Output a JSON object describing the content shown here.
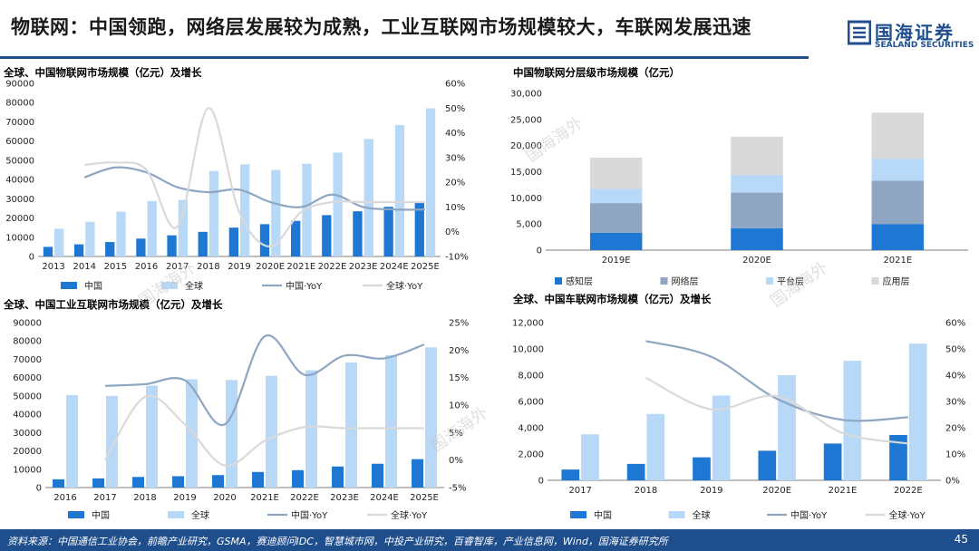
{
  "header": {
    "title": "物联网：中国领跑，网络层发展较为成熟，工业互联网市场规模较大，车联网发展迅速",
    "logo_cn": "国海证券",
    "logo_en": "SEALAND SECURITIES"
  },
  "watermark": "国海海外",
  "footer": {
    "source": "资料来源：中国通信工业协会，前瞻产业研究，GSMA，赛迪顾问IDC，智慧城市网，中投产业研究，百睿智库，产业信息网，Wind，国海证券研究所",
    "page": "45"
  },
  "colors": {
    "china": "#1f77d4",
    "global": "#b7d8f7",
    "china_yoy": "#8ea6c2",
    "global_yoy": "#d9d9d9",
    "perception": "#1f77d4",
    "network": "#8ea6c2",
    "platform": "#b7d8f7",
    "application": "#d9d9d9",
    "brand": "#1f4e8c"
  },
  "chart_data": [
    {
      "id": "iot",
      "type": "bar",
      "title": "全球、中国物联网市场规模（亿元）及增长",
      "categories": [
        "2013",
        "2014",
        "2015",
        "2016",
        "2017",
        "2018",
        "2019",
        "2020E",
        "2021E",
        "2022E",
        "2023E",
        "2024E",
        "2025E"
      ],
      "series": [
        {
          "name": "中国",
          "kind": "bar",
          "values": [
            5000,
            6300,
            7500,
            9300,
            11000,
            12800,
            15000,
            16800,
            18500,
            21500,
            23500,
            25800,
            28000
          ]
        },
        {
          "name": "全球",
          "kind": "bar",
          "values": [
            14400,
            18000,
            23300,
            28800,
            29400,
            44400,
            47900,
            45000,
            48200,
            54000,
            61100,
            68400,
            77000
          ]
        },
        {
          "name": "中国·YoY",
          "kind": "line",
          "axis": "right",
          "values": [
            null,
            22,
            26,
            24,
            18,
            16,
            17,
            12,
            10,
            15,
            10,
            9,
            9
          ]
        },
        {
          "name": "全球·YoY",
          "kind": "line",
          "axis": "right",
          "values": [
            null,
            27,
            28,
            25,
            2,
            50,
            8,
            -6,
            8,
            12,
            12,
            12,
            12
          ]
        }
      ],
      "ylim": [
        0,
        90000
      ],
      "y_ticks": [
        "0",
        "10000",
        "20000",
        "30000",
        "40000",
        "50000",
        "60000",
        "70000",
        "80000",
        "90000"
      ],
      "y2lim": [
        -10,
        60
      ],
      "y2_ticks": [
        "-10%",
        "0%",
        "10%",
        "20%",
        "30%",
        "40%",
        "50%",
        "60%"
      ],
      "legend": [
        "中国",
        "全球",
        "中国·YoY",
        "全球·YoY"
      ]
    },
    {
      "id": "layers",
      "type": "bar",
      "stacked": true,
      "title": "中国物联网分层级市场规模（亿元）",
      "categories": [
        "2019E",
        "2020E",
        "2021E"
      ],
      "series": [
        {
          "name": "感知层",
          "values": [
            3300,
            4200,
            5000
          ]
        },
        {
          "name": "网络层",
          "values": [
            5700,
            6800,
            8300
          ]
        },
        {
          "name": "平台层",
          "values": [
            2700,
            3400,
            4200
          ]
        },
        {
          "name": "应用层",
          "values": [
            6000,
            7300,
            8800
          ]
        }
      ],
      "ylim": [
        0,
        30000
      ],
      "y_ticks": [
        "0",
        "5,000",
        "10,000",
        "15,000",
        "20,000",
        "25,000",
        "30,000"
      ],
      "legend": [
        "感知层",
        "网络层",
        "平台层",
        "应用层"
      ]
    },
    {
      "id": "iiot",
      "type": "bar",
      "title": "全球、中国工业互联网市场规模（亿元）及增长",
      "categories": [
        "2016",
        "2017",
        "2018",
        "2019",
        "2020",
        "2021E",
        "2022E",
        "2023E",
        "2024E",
        "2025E"
      ],
      "series": [
        {
          "name": "中国",
          "kind": "bar",
          "values": [
            4500,
            5000,
            5800,
            6200,
            6800,
            8500,
            9500,
            11500,
            13000,
            15500
          ]
        },
        {
          "name": "全球",
          "kind": "bar",
          "values": [
            50400,
            50000,
            55600,
            59100,
            58700,
            61000,
            64000,
            68200,
            72200,
            76500
          ]
        },
        {
          "name": "中国·YoY",
          "kind": "line",
          "axis": "right",
          "values": [
            null,
            13.5,
            13.8,
            14.5,
            6.5,
            22.5,
            15.5,
            19,
            18.5,
            21
          ]
        },
        {
          "name": "全球·YoY",
          "kind": "line",
          "axis": "right",
          "values": [
            null,
            0,
            11.5,
            6.5,
            -1,
            3.5,
            6,
            5.8,
            5.8,
            5.8
          ]
        }
      ],
      "ylim": [
        0,
        90000
      ],
      "y_ticks": [
        "0",
        "10000",
        "20000",
        "30000",
        "40000",
        "50000",
        "60000",
        "70000",
        "80000",
        "90000"
      ],
      "y2lim": [
        -5,
        25
      ],
      "y2_ticks": [
        "-5%",
        "0%",
        "5%",
        "10%",
        "15%",
        "20%",
        "25%"
      ],
      "legend": [
        "中国",
        "全球",
        "中国·YoY",
        "全球·YoY"
      ]
    },
    {
      "id": "iov",
      "type": "bar",
      "title": "全球、中国车联网市场规模（亿元）及增长",
      "categories": [
        "2017",
        "2018",
        "2019",
        "2020E",
        "2021E",
        "2022E"
      ],
      "series": [
        {
          "name": "中国",
          "kind": "bar",
          "values": [
            820,
            1250,
            1750,
            2250,
            2800,
            3450
          ]
        },
        {
          "name": "全球",
          "kind": "bar",
          "values": [
            3500,
            5050,
            6450,
            8000,
            9100,
            10400
          ]
        },
        {
          "name": "中国·YoY",
          "kind": "line",
          "axis": "right",
          "values": [
            null,
            53,
            47,
            31,
            23,
            24
          ]
        },
        {
          "name": "全球·YoY",
          "kind": "line",
          "axis": "right",
          "values": [
            null,
            39,
            27,
            32,
            18,
            14
          ]
        }
      ],
      "ylim": [
        0,
        12000
      ],
      "y_ticks": [
        "0",
        "2,000",
        "4,000",
        "6,000",
        "8,000",
        "10,000",
        "12,000"
      ],
      "y2lim": [
        0,
        60
      ],
      "y2_ticks": [
        "0%",
        "10%",
        "20%",
        "30%",
        "40%",
        "50%",
        "60%"
      ],
      "legend": [
        "中国",
        "全球",
        "中国·YoY",
        "全球·YoY"
      ]
    }
  ]
}
